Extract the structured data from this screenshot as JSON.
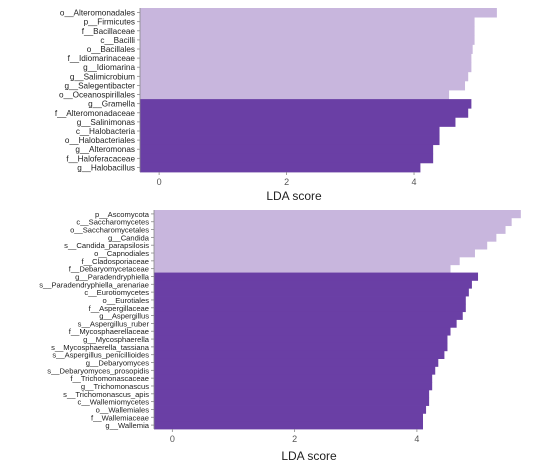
{
  "colors": {
    "light": "#c8b6dd",
    "dark": "#6a3fa5",
    "axis": "#888888",
    "text": "#222222"
  },
  "chart_data": [
    {
      "type": "bar",
      "orientation": "horizontal",
      "xlabel": "LDA score",
      "xlim": [
        -0.3,
        5.6
      ],
      "xticks": [
        0,
        2,
        4
      ],
      "grid": false,
      "categories": [
        "o__Alteromonadales",
        "p__Firmicutes",
        "f__Bacillaceae",
        "c__Bacilli",
        "o__Bacillales",
        "f__Idiomarinaceae",
        "g__Idiomarina",
        "g__Salimicrobium",
        "g__Salegentibacter",
        "o__Oceanospirillales",
        "g__Gramella",
        "f__Alteromonadaceae",
        "g__Salinimonas",
        "c__Halobacteria",
        "o__Halobacteriales",
        "g__Alteromonas",
        "f__Haloferacaceae",
        "g__Halobacillus"
      ],
      "values": [
        5.3,
        4.95,
        4.95,
        4.95,
        4.92,
        4.9,
        4.9,
        4.85,
        4.8,
        4.55,
        4.9,
        4.85,
        4.65,
        4.4,
        4.4,
        4.3,
        4.3,
        4.1
      ],
      "groups": [
        "light",
        "light",
        "light",
        "light",
        "light",
        "light",
        "light",
        "light",
        "light",
        "light",
        "dark",
        "dark",
        "dark",
        "dark",
        "dark",
        "dark",
        "dark",
        "dark"
      ]
    },
    {
      "type": "bar",
      "orientation": "horizontal",
      "xlabel": "LDA score",
      "xlim": [
        -0.3,
        5.85
      ],
      "xticks": [
        0,
        2,
        4
      ],
      "grid": false,
      "categories": [
        "p__Ascomycota",
        "c__Saccharomycetes",
        "o__Saccharomycetales",
        "g__Candida",
        "s__Candida_parapsilosis",
        "o__Capnodiales",
        "f__Cladosporiaceae",
        "f__Debaryomycetaceae",
        "g__Paradendryphiella",
        "s__Paradendryphiella_arenariae",
        "c__Eurotiomycetes",
        "o__Eurotiales",
        "f__Aspergillaceae",
        "g__Aspergillus",
        "s__Aspergillus_ruber",
        "f__Mycosphaerellaceae",
        "g__Mycosphaerella",
        "s__Mycosphaerella_tassiana",
        "s__Aspergillus_penicillioides",
        "g__Debaryomyces",
        "s__Debaryomyces_prosopidis",
        "f__Trichomonascaceae",
        "g__Trichomonascus",
        "s__Trichomonascus_apis",
        "c__Wallemiomycetes",
        "o__Wallemiales",
        "f__Wallemiaceae",
        "g__Wallemia"
      ],
      "values": [
        5.7,
        5.55,
        5.45,
        5.3,
        5.15,
        4.95,
        4.7,
        4.55,
        5.0,
        4.9,
        4.85,
        4.8,
        4.8,
        4.75,
        4.65,
        4.55,
        4.5,
        4.5,
        4.45,
        4.35,
        4.3,
        4.25,
        4.25,
        4.2,
        4.2,
        4.15,
        4.1,
        4.1
      ],
      "groups": [
        "light",
        "light",
        "light",
        "light",
        "light",
        "light",
        "light",
        "light",
        "dark",
        "dark",
        "dark",
        "dark",
        "dark",
        "dark",
        "dark",
        "dark",
        "dark",
        "dark",
        "dark",
        "dark",
        "dark",
        "dark",
        "dark",
        "dark",
        "dark",
        "dark",
        "dark",
        "dark"
      ]
    }
  ]
}
